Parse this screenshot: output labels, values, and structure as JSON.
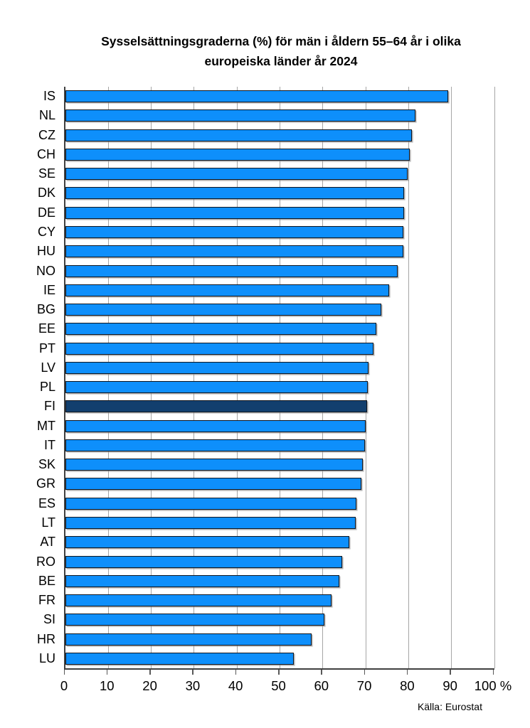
{
  "title": {
    "line1": "Sysselsättningsgraderna (%) för män i åldern 55–64 år i olika",
    "line2": "europeiska länder år 2024"
  },
  "source": "Källa: Eurostat",
  "chart_data": {
    "type": "bar",
    "orientation": "horizontal",
    "title": "Sysselsättningsgraderna (%) för män i åldern 55–64 år i olika europeiska länder år 2024",
    "xlabel": "%",
    "ylabel": "",
    "xlim": [
      0,
      100
    ],
    "grid": true,
    "legend": false,
    "categories": [
      "IS",
      "NL",
      "CZ",
      "CH",
      "SE",
      "DK",
      "DE",
      "CY",
      "HU",
      "NO",
      "IE",
      "BG",
      "EE",
      "PT",
      "LV",
      "PL",
      "FI",
      "MT",
      "IT",
      "SK",
      "GR",
      "ES",
      "LT",
      "AT",
      "RO",
      "BE",
      "FR",
      "SI",
      "HR",
      "LU"
    ],
    "values": [
      89.3,
      81.6,
      80.7,
      80.3,
      79.7,
      79.0,
      78.9,
      78.8,
      78.7,
      77.5,
      75.5,
      73.7,
      72.5,
      71.8,
      70.6,
      70.5,
      70.3,
      70.0,
      69.9,
      69.3,
      69.0,
      67.8,
      67.6,
      66.1,
      64.5,
      63.9,
      62.0,
      60.4,
      57.4,
      53.2
    ],
    "highlight_category": "FI",
    "x_ticks": [
      0,
      10,
      20,
      30,
      40,
      50,
      60,
      70,
      80,
      90,
      100
    ],
    "x_tick_labels": [
      "0",
      "10",
      "20",
      "30",
      "40",
      "50",
      "60",
      "70",
      "80",
      "90",
      "100 %"
    ],
    "colors": {
      "bar": "#0E8FFB",
      "highlight": "#123F6E",
      "gridline": "#A6A6A6",
      "axis": "#404040",
      "text": "#000000"
    },
    "source": "Källa: Eurostat"
  }
}
